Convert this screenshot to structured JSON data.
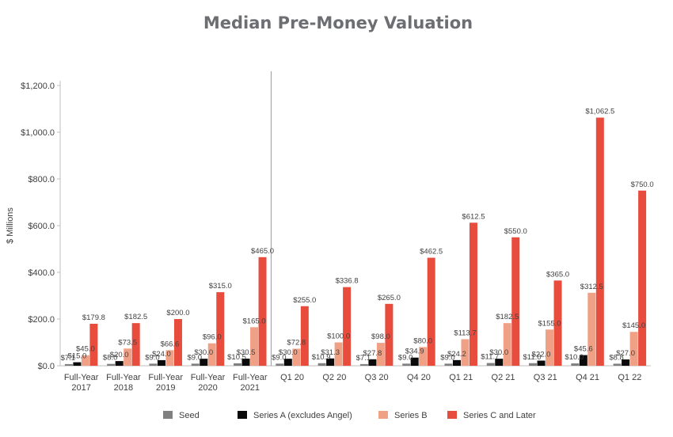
{
  "chart_data": {
    "type": "bar",
    "title": "Median Pre-Money Valuation",
    "ylabel": "$ Millions",
    "xlabel": "",
    "ylim": [
      0,
      1200
    ],
    "yticks": [
      "$0.0",
      "$200.0",
      "$400.0",
      "$600.0",
      "$800.0",
      "$1,000.0",
      "$1,200.0"
    ],
    "categories": [
      [
        "Full-Year",
        "2017"
      ],
      [
        "Full-Year",
        "2018"
      ],
      [
        "Full-Year",
        "2019"
      ],
      [
        "Full-Year",
        "2020"
      ],
      [
        "Full-Year",
        "2021"
      ],
      [
        "Q1 20"
      ],
      [
        "Q2 20"
      ],
      [
        "Q3 20"
      ],
      [
        "Q4 20"
      ],
      [
        "Q1 21"
      ],
      [
        "Q2 21"
      ],
      [
        "Q3 21"
      ],
      [
        "Q4 21"
      ],
      [
        "Q1 22"
      ]
    ],
    "series": [
      {
        "name": "Seed",
        "color": "#808080",
        "values": [
          7.1,
          8.0,
          9.0,
          9.0,
          10.5,
          9.0,
          10.9,
          7.1,
          9.0,
          9.0,
          11.7,
          11.0,
          10.0,
          8.8
        ],
        "labels": [
          "$7.1",
          "$8.0",
          "$9.0",
          "$9.0",
          "$10.5",
          "$9.0",
          "$10.9",
          "$7.1",
          "$9.0",
          "$9.0",
          "$11.7",
          "$11.0",
          "$10.0",
          "$8.8"
        ]
      },
      {
        "name": "Series A (excludes Angel)",
        "color": "#0a0a0a",
        "values": [
          15.0,
          20.0,
          24.0,
          30.0,
          30.5,
          30.0,
          31.3,
          27.8,
          34.9,
          24.2,
          30.0,
          22.0,
          45.6,
          27.0
        ],
        "labels": [
          "$15.0",
          "$20.0",
          "$24.0",
          "$30.0",
          "$30.5",
          "$30.0",
          "$31.3",
          "$27.8",
          "$34.9",
          "$24.2",
          "$30.0",
          "$22.0",
          "$45.6",
          "$27.0"
        ]
      },
      {
        "name": "Series B",
        "color": "#f0a085",
        "values": [
          45.0,
          73.5,
          66.6,
          96.0,
          165.0,
          72.8,
          100.0,
          98.0,
          80.0,
          113.7,
          182.5,
          155.0,
          312.5,
          145.0
        ],
        "labels": [
          "$45.0",
          "$73.5",
          "$66.6",
          "$96.0",
          "$165.0",
          "$72.8",
          "$100.0",
          "$98.0",
          "$80.0",
          "$113.7",
          "$182.5",
          "$155.0",
          "$312.5",
          "$145.0"
        ]
      },
      {
        "name": "Series C and Later",
        "color": "#e84c3d",
        "values": [
          179.8,
          182.5,
          200.0,
          315.0,
          465.0,
          255.0,
          336.8,
          265.0,
          462.5,
          612.5,
          550.0,
          365.0,
          1062.5,
          750.0
        ],
        "labels": [
          "$179.8",
          "$182.5",
          "$200.0",
          "$315.0",
          "$465.0",
          "$255.0",
          "$336.8",
          "$265.0",
          "$462.5",
          "$612.5",
          "$550.0",
          "$365.0",
          "$1,062.5",
          "$750.0"
        ]
      }
    ],
    "grid": false,
    "legend_position": "bottom"
  }
}
